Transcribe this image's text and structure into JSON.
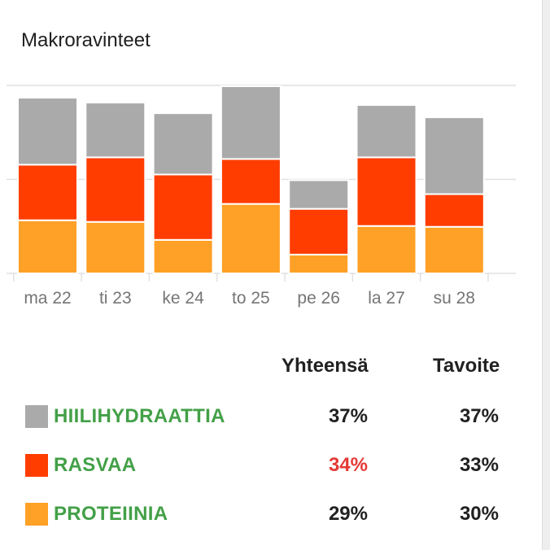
{
  "card": {
    "title": "Makroravinteet"
  },
  "colors": {
    "carbs": "#aaaaaa",
    "fat": "#ff3d00",
    "protein": "#ffa027",
    "label_green": "#43a047",
    "over_red": "#e53935",
    "grid": "#e0e0e0"
  },
  "chart_data": {
    "type": "bar",
    "stacked": true,
    "categories": [
      "ma 22",
      "ti 23",
      "ke 24",
      "to 25",
      "pe 26",
      "la 27",
      "su 28"
    ],
    "series": [
      {
        "key": "protein",
        "name": "PROTEIINIA",
        "values": [
          65,
          63,
          41,
          85,
          23,
          58,
          57
        ]
      },
      {
        "key": "fat",
        "name": "RASVAA",
        "values": [
          68,
          79,
          80,
          55,
          56,
          84,
          40
        ]
      },
      {
        "key": "carbs",
        "name": "HIILIHYDRAATTIA",
        "values": [
          82,
          67,
          75,
          89,
          35,
          64,
          94
        ]
      }
    ],
    "ylim": [
      0,
      230
    ],
    "grid": true,
    "legend": "bottom"
  },
  "summary": {
    "total_header": "Yhteensä",
    "goal_header": "Tavoite",
    "rows": [
      {
        "key": "carbs",
        "label": "HIILIHYDRAATTIA",
        "total": "37%",
        "goal": "37%",
        "over": false
      },
      {
        "key": "fat",
        "label": "RASVAA",
        "total": "34%",
        "goal": "33%",
        "over": true
      },
      {
        "key": "protein",
        "label": "PROTEIINIA",
        "total": "29%",
        "goal": "30%",
        "over": false
      }
    ]
  }
}
